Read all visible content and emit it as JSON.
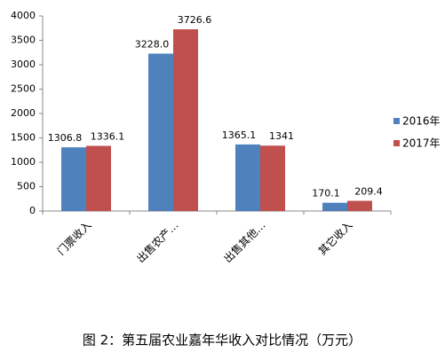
{
  "chart_data": {
    "type": "bar",
    "caption": "图 2：第五届农业嘉年华收入对比情况（万元）",
    "categories": [
      "门票收入",
      "出售农产…",
      "出售其他…",
      "其它收入"
    ],
    "series": [
      {
        "name": "2016年",
        "color": "#4f81bd",
        "values": [
          1306.8,
          3228.0,
          1365.1,
          170.1
        ],
        "value_labels": [
          "1306.8",
          "3228.0",
          "1365.1",
          "170.1"
        ]
      },
      {
        "name": "2017年",
        "color": "#c0504d",
        "values": [
          1336.1,
          3726.6,
          1341,
          209.4
        ],
        "value_labels": [
          "1336.1",
          "3726.6",
          "1341",
          "209.4"
        ]
      }
    ],
    "ylim": [
      0,
      4000
    ],
    "yticks": [
      0,
      500,
      1000,
      1500,
      2000,
      2500,
      3000,
      3500,
      4000
    ],
    "grid": false,
    "legend": "right"
  }
}
